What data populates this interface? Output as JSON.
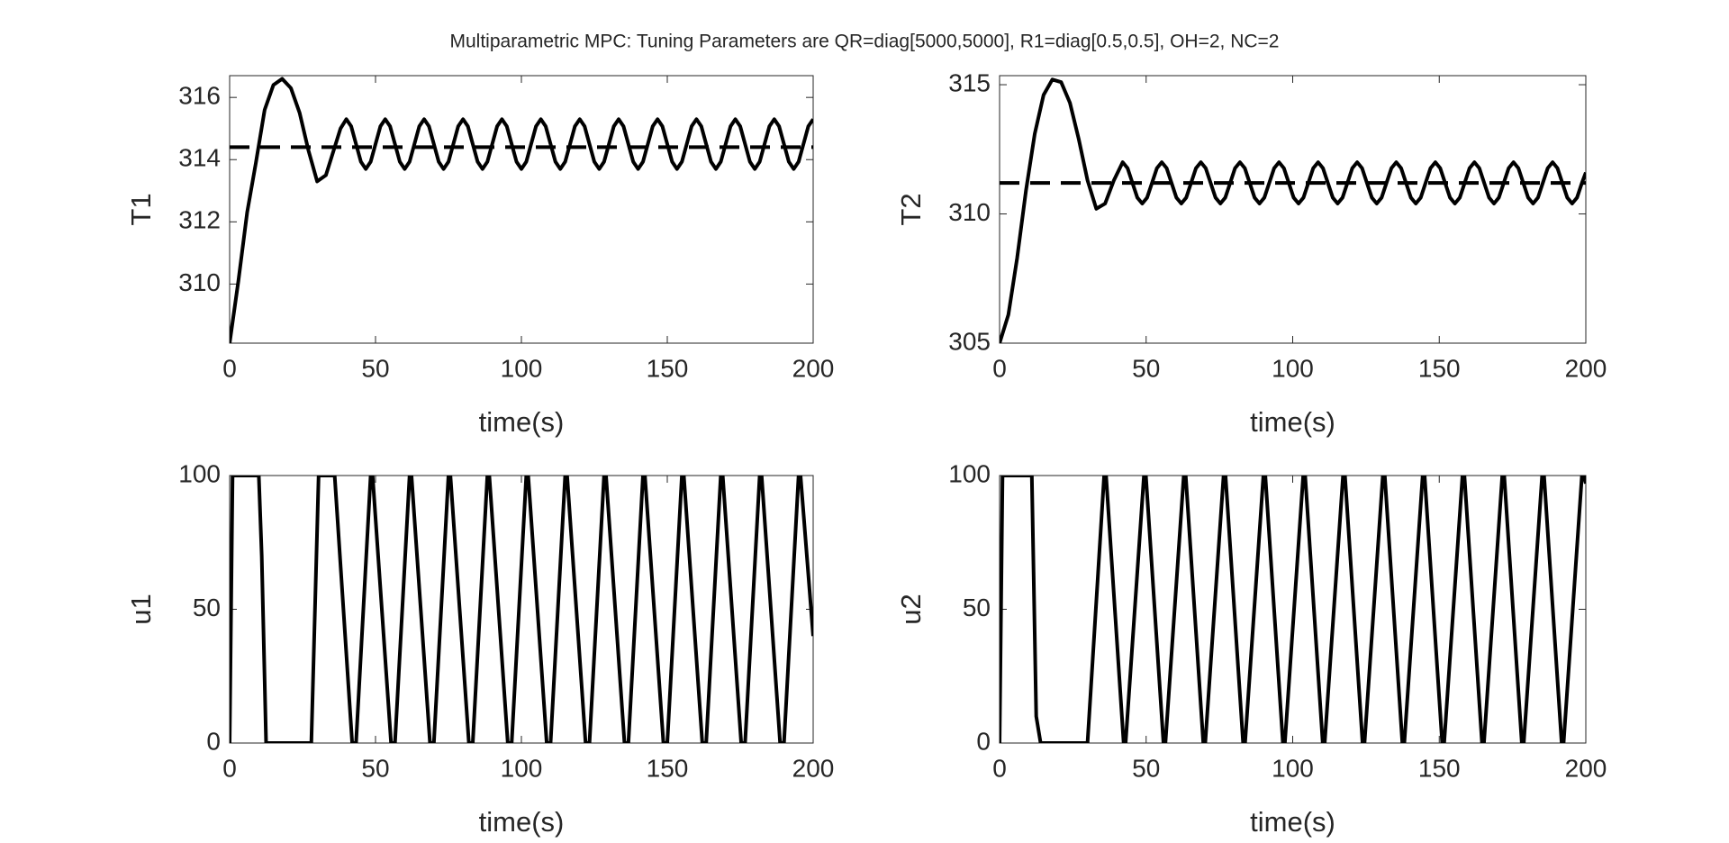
{
  "title": "Multiparametric MPC: Tuning Parameters are QR=diag[5000,5000],  R1=diag[0.5,0.5],  OH=2,  NC=2",
  "chart_data": [
    {
      "type": "line",
      "xlabel": "time(s)",
      "ylabel": "T1",
      "xlim": [
        0,
        200
      ],
      "ylim": [
        308.1,
        316.7
      ],
      "xticks": [
        0,
        50,
        100,
        150,
        200
      ],
      "yticks": [
        310,
        312,
        314,
        316
      ],
      "series": [
        {
          "color": "#000000",
          "line_style": "solid",
          "x": [
            0,
            3,
            6,
            9,
            12,
            15,
            18,
            21,
            24,
            27,
            30,
            33,
            36,
            38,
            40,
            41.67,
            43.33,
            45,
            46.67,
            48.33,
            50,
            51.67,
            53.33,
            55,
            56.67,
            58.33,
            60,
            61.67,
            63.33,
            65,
            66.67,
            68.33,
            70,
            71.67,
            73.33,
            75,
            76.67,
            78.33,
            80,
            81.67,
            83.33,
            85,
            86.67,
            88.33,
            90,
            91.67,
            93.33,
            95,
            96.67,
            98.33,
            100,
            101.67,
            103.33,
            105,
            106.67,
            108.33,
            110,
            111.67,
            113.33,
            115,
            116.67,
            118.33,
            120,
            121.67,
            123.33,
            125,
            126.67,
            128.33,
            130,
            131.67,
            133.33,
            135,
            136.67,
            138.33,
            140,
            141.67,
            143.33,
            145,
            146.67,
            148.33,
            150,
            151.67,
            153.33,
            155,
            156.67,
            158.33,
            160,
            161.67,
            163.33,
            165,
            166.67,
            168.33,
            170,
            171.67,
            173.33,
            175,
            176.67,
            178.33,
            180,
            181.67,
            183.33,
            185,
            186.67,
            188.33,
            190,
            191.67,
            193.33,
            195,
            196.67,
            198.33,
            200
          ],
          "values": [
            308.1,
            310.1,
            312.3,
            313.9,
            315.6,
            316.4,
            316.6,
            316.3,
            315.5,
            314.3,
            313.3,
            313.5,
            314.4,
            315.0,
            315.3,
            315.07,
            314.5,
            313.93,
            313.7,
            313.93,
            314.5,
            315.07,
            315.3,
            315.07,
            314.5,
            313.93,
            313.7,
            313.93,
            314.5,
            315.07,
            315.3,
            315.07,
            314.5,
            313.93,
            313.7,
            313.93,
            314.5,
            315.07,
            315.3,
            315.07,
            314.5,
            313.93,
            313.7,
            313.93,
            314.5,
            315.07,
            315.3,
            315.07,
            314.5,
            313.93,
            313.7,
            313.93,
            314.5,
            315.07,
            315.3,
            315.07,
            314.5,
            313.93,
            313.7,
            313.93,
            314.5,
            315.07,
            315.3,
            315.07,
            314.5,
            313.93,
            313.7,
            313.93,
            314.5,
            315.07,
            315.3,
            315.07,
            314.5,
            313.93,
            313.7,
            313.93,
            314.5,
            315.07,
            315.3,
            315.07,
            314.5,
            313.93,
            313.7,
            313.93,
            314.5,
            315.07,
            315.3,
            315.07,
            314.5,
            313.93,
            313.7,
            313.93,
            314.5,
            315.07,
            315.3,
            315.07,
            314.5,
            313.93,
            313.7,
            313.93,
            314.5,
            315.07,
            315.3,
            315.07,
            314.5,
            313.93,
            313.7,
            313.93,
            314.5,
            315.07,
            315.3
          ]
        },
        {
          "color": "#000000",
          "line_style": "dashed",
          "x": [
            0,
            200
          ],
          "values": [
            314.4,
            314.4
          ]
        }
      ]
    },
    {
      "type": "line",
      "xlabel": "time(s)",
      "ylabel": "T2",
      "xlim": [
        0,
        200
      ],
      "ylim": [
        305,
        315.35
      ],
      "xticks": [
        0,
        50,
        100,
        150,
        200
      ],
      "yticks": [
        305,
        310,
        315
      ],
      "series": [
        {
          "color": "#000000",
          "line_style": "solid",
          "x": [
            0,
            3,
            6,
            9,
            12,
            15,
            18,
            21,
            24,
            27,
            30,
            33,
            36,
            39,
            42,
            43.67,
            45.33,
            47,
            48.67,
            50.33,
            52,
            53.67,
            55.33,
            57,
            58.67,
            60.33,
            62,
            63.67,
            65.33,
            67,
            68.67,
            70.33,
            72,
            73.67,
            75.33,
            77,
            78.67,
            80.33,
            82,
            83.67,
            85.33,
            87,
            88.67,
            90.33,
            92,
            93.67,
            95.33,
            97,
            98.67,
            100.33,
            102,
            103.67,
            105.33,
            107,
            108.67,
            110.33,
            112,
            113.67,
            115.33,
            117,
            118.67,
            120.33,
            122,
            123.67,
            125.33,
            127,
            128.67,
            130.33,
            132,
            133.67,
            135.33,
            137,
            138.67,
            140.33,
            142,
            143.67,
            145.33,
            147,
            148.67,
            150.33,
            152,
            153.67,
            155.33,
            157,
            158.67,
            160.33,
            162,
            163.67,
            165.33,
            167,
            168.67,
            170.33,
            172,
            173.67,
            175.33,
            177,
            178.67,
            180.33,
            182,
            183.67,
            185.33,
            187,
            188.67,
            190.33,
            192,
            193.67,
            195.33,
            197,
            198.67,
            200
          ],
          "values": [
            305,
            306.1,
            308.3,
            310.9,
            313.1,
            314.6,
            315.2,
            315.1,
            314.3,
            312.9,
            311.3,
            310.2,
            310.4,
            311.3,
            312.0,
            311.77,
            311.2,
            310.63,
            310.4,
            310.63,
            311.2,
            311.77,
            312.0,
            311.77,
            311.2,
            310.63,
            310.4,
            310.63,
            311.2,
            311.77,
            312.0,
            311.77,
            311.2,
            310.63,
            310.4,
            310.63,
            311.2,
            311.77,
            312.0,
            311.77,
            311.2,
            310.63,
            310.4,
            310.63,
            311.2,
            311.77,
            312.0,
            311.77,
            311.2,
            310.63,
            310.4,
            310.63,
            311.2,
            311.77,
            312.0,
            311.77,
            311.2,
            310.63,
            310.4,
            310.63,
            311.2,
            311.77,
            312.0,
            311.77,
            311.2,
            310.63,
            310.4,
            310.63,
            311.2,
            311.77,
            312.0,
            311.77,
            311.2,
            310.63,
            310.4,
            310.63,
            311.2,
            311.77,
            312.0,
            311.77,
            311.2,
            310.63,
            310.4,
            310.63,
            311.2,
            311.77,
            312.0,
            311.77,
            311.2,
            310.63,
            310.4,
            310.63,
            311.2,
            311.77,
            312.0,
            311.77,
            311.2,
            310.63,
            310.4,
            310.63,
            311.2,
            311.77,
            312.0,
            311.77,
            311.2,
            310.63,
            310.4,
            310.63,
            311.2,
            311.6
          ]
        },
        {
          "color": "#000000",
          "line_style": "dashed",
          "x": [
            0,
            200
          ],
          "values": [
            311.2,
            311.2
          ]
        }
      ]
    },
    {
      "type": "line",
      "xlabel": "time(s)",
      "ylabel": "u1",
      "xlim": [
        0,
        200
      ],
      "ylim": [
        0,
        100
      ],
      "xticks": [
        0,
        50,
        100,
        150,
        200
      ],
      "yticks": [
        0,
        50,
        100
      ],
      "series": [
        {
          "color": "#000000",
          "line_style": "solid",
          "x": [
            0,
            1,
            10,
            11,
            12.5,
            28,
            30.5,
            36,
            42,
            43.33,
            48.33,
            49,
            55.33,
            56.67,
            61.67,
            62.33,
            68.67,
            70,
            75,
            75.67,
            82,
            83.33,
            88.33,
            89,
            95.33,
            96.67,
            101.67,
            102.33,
            108.67,
            110,
            115,
            115.67,
            122,
            123.33,
            128.33,
            129,
            135.33,
            136.67,
            141.67,
            142.33,
            148.67,
            150,
            155,
            155.67,
            162,
            163.33,
            168.33,
            169,
            175.33,
            176.67,
            181.67,
            182.33,
            188.67,
            190,
            195,
            195.67,
            200
          ],
          "values": [
            0,
            100,
            100,
            70,
            0,
            0,
            100,
            100,
            0,
            0,
            100,
            100,
            0,
            0,
            100,
            100,
            0,
            0,
            100,
            100,
            0,
            0,
            100,
            100,
            0,
            0,
            100,
            100,
            0,
            0,
            100,
            100,
            0,
            0,
            100,
            100,
            0,
            0,
            100,
            100,
            0,
            0,
            100,
            100,
            0,
            0,
            100,
            100,
            0,
            0,
            100,
            100,
            0,
            0,
            100,
            100,
            40
          ]
        }
      ]
    },
    {
      "type": "line",
      "xlabel": "time(s)",
      "ylabel": "u2",
      "xlim": [
        0,
        200
      ],
      "ylim": [
        0,
        100
      ],
      "xticks": [
        0,
        50,
        100,
        150,
        200
      ],
      "yticks": [
        0,
        50,
        100
      ],
      "series": [
        {
          "color": "#000000",
          "line_style": "solid",
          "x": [
            0,
            1,
            11,
            12.5,
            14,
            30,
            35.67,
            36.33,
            42.33,
            43,
            49.25,
            49.91,
            55.91,
            56.58,
            62.84,
            63.5,
            69.5,
            70.17,
            76.42,
            77.08,
            83.08,
            83.75,
            90,
            90.66,
            96.66,
            97.33,
            103.59,
            104.25,
            110.25,
            110.92,
            117.17,
            117.83,
            123.83,
            124.5,
            130.75,
            131.41,
            137.41,
            138.08,
            144.34,
            145,
            151,
            151.67,
            157.92,
            158.58,
            164.58,
            165.25,
            171.5,
            172.16,
            178.16,
            178.83,
            185.09,
            185.75,
            191.75,
            192.42,
            198.67,
            199.33,
            200
          ],
          "values": [
            0,
            100,
            100,
            10,
            0,
            0,
            100,
            100,
            0,
            0,
            100,
            100,
            0,
            0,
            100,
            100,
            0,
            0,
            100,
            100,
            0,
            0,
            100,
            100,
            0,
            0,
            100,
            100,
            0,
            0,
            100,
            100,
            0,
            0,
            100,
            100,
            0,
            0,
            100,
            100,
            0,
            0,
            100,
            100,
            0,
            0,
            100,
            100,
            0,
            0,
            100,
            100,
            0,
            0,
            100,
            100,
            97
          ]
        }
      ]
    }
  ]
}
